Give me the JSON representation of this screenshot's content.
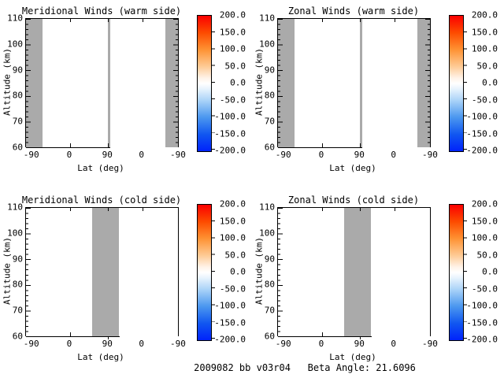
{
  "figure": {
    "footer": "2009082 bb v03r04   Beta Angle: 21.6096",
    "background": "#ffffff",
    "axis_color": "#000000",
    "no_data_color": "#aaaaaa"
  },
  "axes": {
    "x_tick_labels": [
      "-90",
      "0",
      "90",
      "0",
      "-90"
    ],
    "y_tick_labels": [
      "110",
      "100",
      "90",
      "80",
      "70",
      "60"
    ],
    "colorbar_tick_labels": [
      "200.0",
      "150.0",
      "100.0",
      "50.0",
      "0.0",
      "-50.0",
      "-100.0",
      "-150.0",
      "-200.0"
    ]
  },
  "panels": [
    {
      "title": "Meridional Winds (warm side)",
      "xlabel": "Lat (deg)",
      "ylabel": "Altitude (km)"
    },
    {
      "title": "Zonal Winds (warm side)",
      "xlabel": "Lat (deg)",
      "ylabel": "Altitude (km)"
    },
    {
      "title": "Meridional Winds (cold side)",
      "xlabel": "Lat (deg)",
      "ylabel": "Altitude (km)"
    },
    {
      "title": "Zonal Winds (cold side)",
      "xlabel": "Lat (deg)",
      "ylabel": "Altitude (km)"
    }
  ],
  "chart_data": [
    {
      "type": "heatmap",
      "title": "Meridional Winds (warm side)",
      "xlabel": "Lat (deg)",
      "ylabel": "Altitude (km)",
      "x_tick_labels": [
        -90,
        0,
        90,
        0,
        -90
      ],
      "x_axis_note": "folded latitude axis: ascending -90 to 90, then descending back to -90",
      "y_ticks": [
        60,
        70,
        80,
        90,
        100,
        110
      ],
      "ylim": [
        60,
        110
      ],
      "colorbar": {
        "min": -200.0,
        "max": 200.0,
        "tick_step": 50.0,
        "colormap": "blue-white-red"
      },
      "values": "no wind data plotted; field is blank white",
      "no_data_bands_frac": [
        [
          0.0,
          0.11
        ],
        [
          0.538,
          0.554
        ],
        [
          0.918,
          1.0
        ]
      ]
    },
    {
      "type": "heatmap",
      "title": "Zonal Winds (warm side)",
      "xlabel": "Lat (deg)",
      "ylabel": "Altitude (km)",
      "x_tick_labels": [
        -90,
        0,
        90,
        0,
        -90
      ],
      "x_axis_note": "folded latitude axis: ascending -90 to 90, then descending back to -90",
      "y_ticks": [
        60,
        70,
        80,
        90,
        100,
        110
      ],
      "ylim": [
        60,
        110
      ],
      "colorbar": {
        "min": -200.0,
        "max": 200.0,
        "tick_step": 50.0,
        "colormap": "blue-white-red"
      },
      "values": "no wind data plotted; field is blank white",
      "no_data_bands_frac": [
        [
          0.0,
          0.11
        ],
        [
          0.538,
          0.554
        ],
        [
          0.918,
          1.0
        ]
      ]
    },
    {
      "type": "heatmap",
      "title": "Meridional Winds (cold side)",
      "xlabel": "Lat (deg)",
      "ylabel": "Altitude (km)",
      "x_tick_labels": [
        -90,
        0,
        90,
        0,
        -90
      ],
      "x_axis_note": "folded latitude axis: ascending -90 to 90, then descending back to -90",
      "y_ticks": [
        60,
        70,
        80,
        90,
        100,
        110
      ],
      "ylim": [
        60,
        110
      ],
      "colorbar": {
        "min": -200.0,
        "max": 200.0,
        "tick_step": 50.0,
        "colormap": "blue-white-red"
      },
      "values": "no wind data plotted; field is blank white",
      "no_data_bands_frac": [
        [
          0.433,
          0.613
        ]
      ]
    },
    {
      "type": "heatmap",
      "title": "Zonal Winds (cold side)",
      "xlabel": "Lat (deg)",
      "ylabel": "Altitude (km)",
      "x_tick_labels": [
        -90,
        0,
        90,
        0,
        -90
      ],
      "x_axis_note": "folded latitude axis: ascending -90 to 90, then descending back to -90",
      "y_ticks": [
        60,
        70,
        80,
        90,
        100,
        110
      ],
      "ylim": [
        60,
        110
      ],
      "colorbar": {
        "min": -200.0,
        "max": 200.0,
        "tick_step": 50.0,
        "colormap": "blue-white-red"
      },
      "values": "no wind data plotted; field is blank white",
      "no_data_bands_frac": [
        [
          0.433,
          0.613
        ]
      ]
    }
  ]
}
